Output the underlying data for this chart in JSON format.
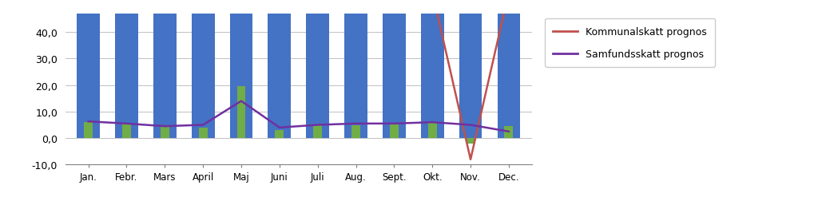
{
  "categories": [
    "Jan.",
    "Febr.",
    "Mars",
    "April",
    "Maj",
    "Juni",
    "Juli",
    "Aug.",
    "Sept.",
    "Okt.",
    "Nov.",
    "Dec."
  ],
  "blue_bars": [
    55,
    55,
    55,
    55,
    55,
    55,
    55,
    55,
    55,
    55,
    55,
    55
  ],
  "green_bars": [
    6.2,
    5.5,
    4.5,
    4.0,
    19.5,
    3.0,
    5.0,
    5.0,
    5.5,
    6.0,
    -2.0,
    4.5
  ],
  "red_line": [
    55,
    55,
    55,
    55,
    55,
    55,
    55,
    55,
    55,
    55,
    -8.0,
    55
  ],
  "purple_line": [
    6.3,
    5.5,
    4.5,
    5.0,
    14.0,
    4.0,
    5.0,
    5.5,
    5.5,
    6.0,
    5.0,
    2.5
  ],
  "blue_color": "#4472C4",
  "green_color": "#70AD47",
  "red_color": "#C0504D",
  "purple_color": "#7030A0",
  "ylim_min": -10.0,
  "ylim_max": 47,
  "yticks": [
    -10.0,
    0.0,
    10.0,
    20.0,
    30.0,
    40.0
  ],
  "legend_komunalskatt": "Kommunalskatt prognos",
  "legend_samfundsskatt": "Samfundsskatt prognos",
  "background_color": "#FFFFFF",
  "grid_color": "#C0C0C0"
}
